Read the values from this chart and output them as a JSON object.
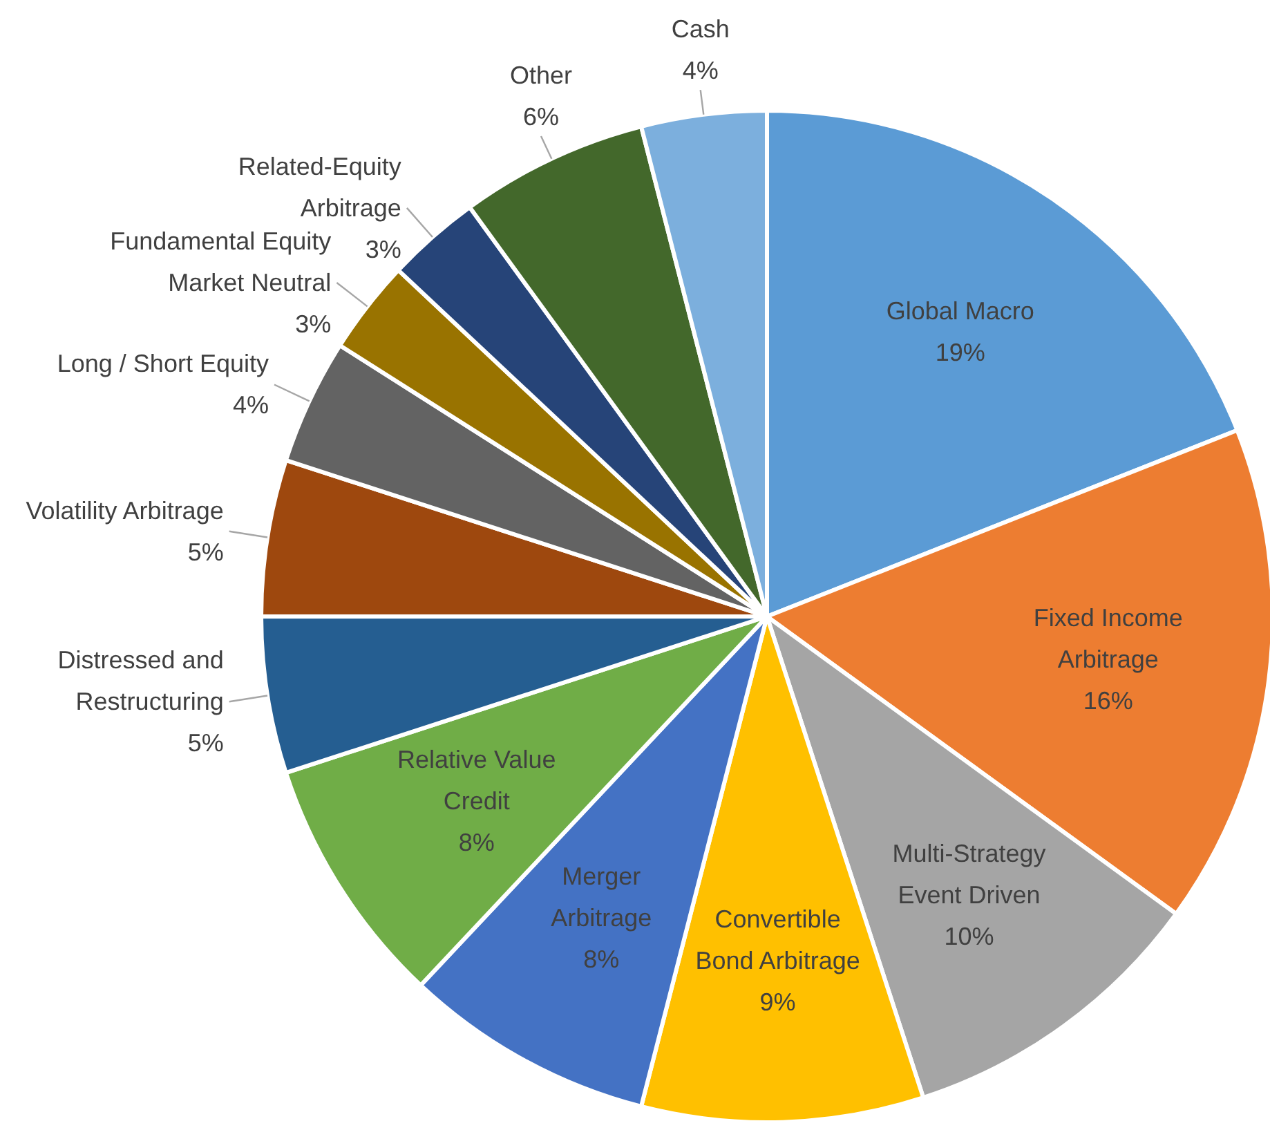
{
  "chart_data": {
    "type": "pie",
    "categories": [
      "Global Macro",
      "Fixed Income Arbitrage",
      "Multi-Strategy Event Driven",
      "Convertible Bond Arbitrage",
      "Merger Arbitrage",
      "Relative Value Credit",
      "Distressed and Restructuring",
      "Volatility Arbitrage",
      "Long / Short Equity",
      "Fundamental Equity Market Neutral",
      "Related-Equity Arbitrage",
      "Other",
      "Cash"
    ],
    "values": [
      19,
      16,
      10,
      9,
      8,
      8,
      5,
      5,
      4,
      3,
      3,
      6,
      4
    ],
    "colors": [
      "#5b9bd5",
      "#ed7d31",
      "#a5a5a5",
      "#ffc000",
      "#4472c4",
      "#70ad47",
      "#255e91",
      "#9e480e",
      "#636363",
      "#997300",
      "#264478",
      "#43682b",
      "#7cafdd"
    ],
    "value_labels": [
      "19%",
      "16%",
      "10%",
      "9%",
      "8%",
      "8%",
      "5%",
      "5%",
      "4%",
      "3%",
      "3%",
      "6%",
      "4%"
    ]
  }
}
